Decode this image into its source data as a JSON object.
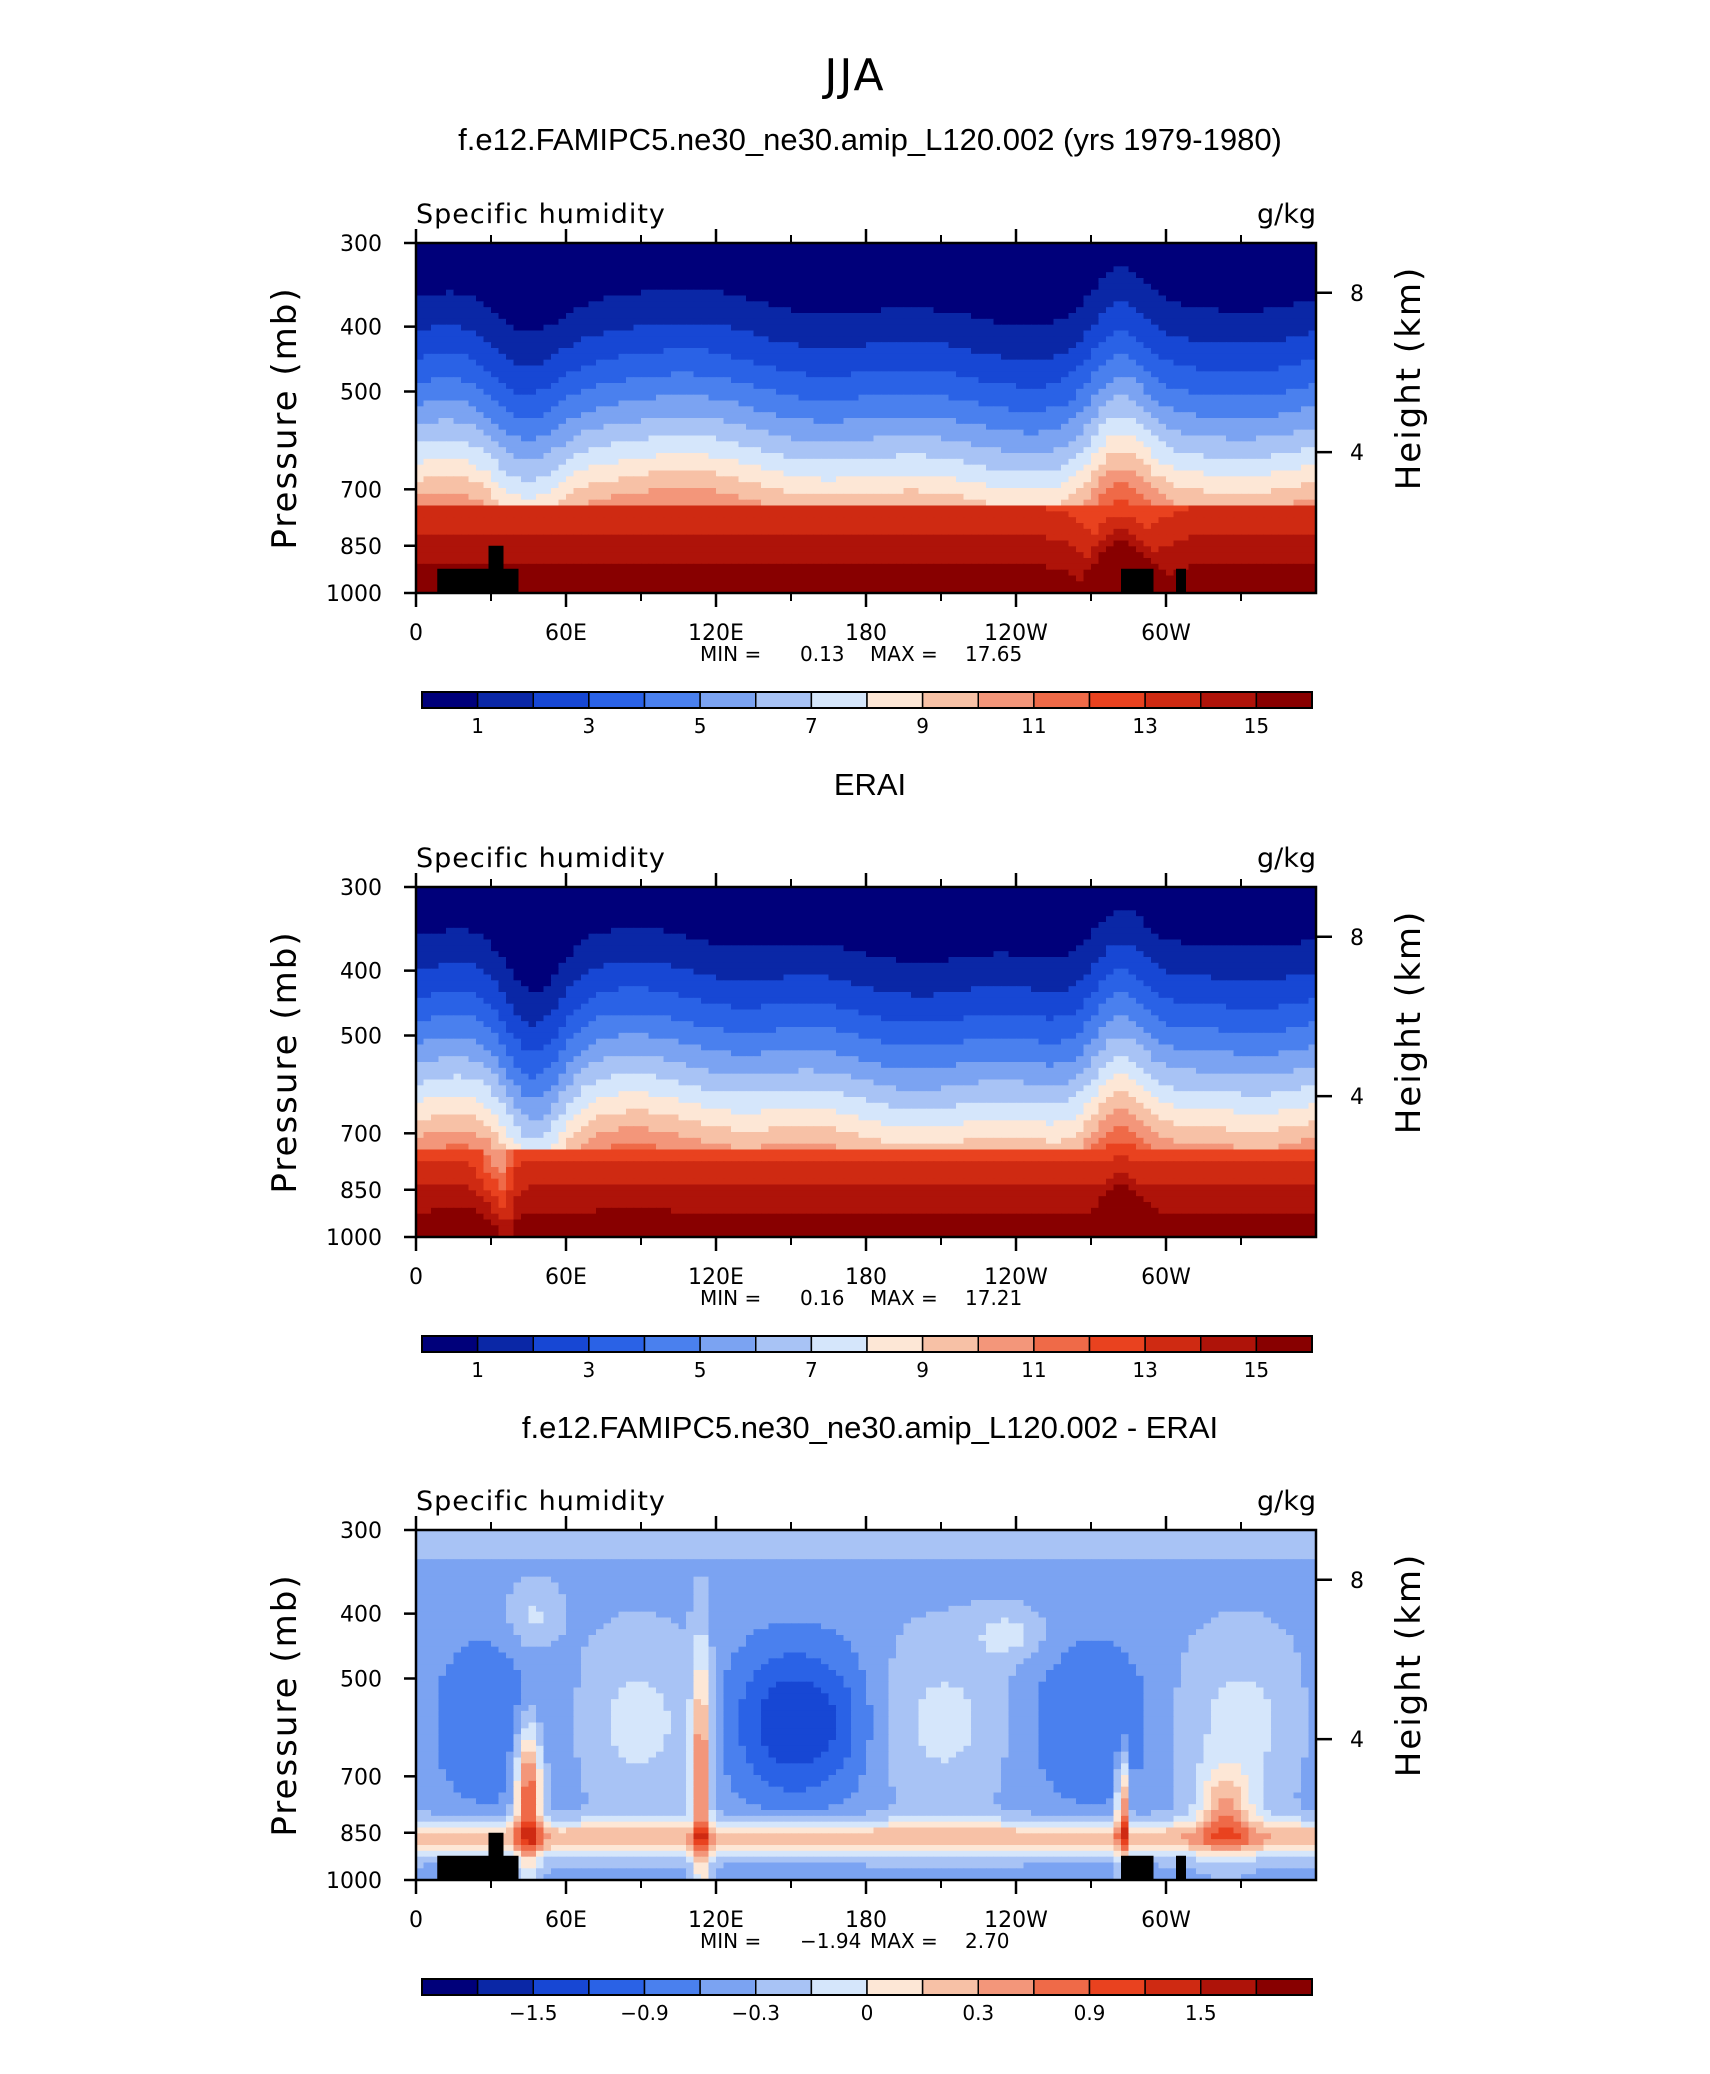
{
  "figure": {
    "title": "JJA"
  },
  "chart_data": [
    {
      "type": "heatmap",
      "title": "f.e12.FAMIPC5.ne30_ne30.amip_L120.002 (yrs 1979-1980)",
      "subtitle_left": "Specific humidity",
      "subtitle_right": "g/kg",
      "ylabel": "Pressure (mb)",
      "ylabel_right": "Height (km)",
      "x_ticks": [
        "0",
        "60E",
        "120E",
        "180",
        "120W",
        "60W"
      ],
      "x_tick_lon": [
        0,
        60,
        120,
        180,
        240,
        300
      ],
      "xlim": [
        0,
        360
      ],
      "y_ticks": [
        "300",
        "400",
        "500",
        "700",
        "850",
        "1000"
      ],
      "y_tick_values": [
        300,
        400,
        500,
        700,
        850,
        1000
      ],
      "ylim": [
        1000,
        300
      ],
      "y_right_ticks": [
        "8",
        "4"
      ],
      "y_right_values": [
        8,
        4
      ],
      "min_label": "MIN =",
      "min_value": "0.13",
      "max_label": "MAX =",
      "max_value": "17.65",
      "min": 0.13,
      "max": 17.65,
      "colorbar_labels": [
        "1",
        "3",
        "5",
        "7",
        "9",
        "11",
        "13",
        "15"
      ],
      "levels": [
        0,
        1,
        2,
        3,
        4,
        5,
        6,
        7,
        8,
        9,
        10,
        11,
        12,
        13,
        14,
        15,
        16
      ],
      "has_topography": true
    },
    {
      "type": "heatmap",
      "title": "ERAI",
      "subtitle_left": "Specific humidity",
      "subtitle_right": "g/kg",
      "ylabel": "Pressure (mb)",
      "ylabel_right": "Height (km)",
      "x_ticks": [
        "0",
        "60E",
        "120E",
        "180",
        "120W",
        "60W"
      ],
      "x_tick_lon": [
        0,
        60,
        120,
        180,
        240,
        300
      ],
      "xlim": [
        0,
        360
      ],
      "y_ticks": [
        "300",
        "400",
        "500",
        "700",
        "850",
        "1000"
      ],
      "y_tick_values": [
        300,
        400,
        500,
        700,
        850,
        1000
      ],
      "ylim": [
        1000,
        300
      ],
      "y_right_ticks": [
        "8",
        "4"
      ],
      "y_right_values": [
        8,
        4
      ],
      "min_label": "MIN =",
      "min_value": "0.16",
      "max_label": "MAX =",
      "max_value": "17.21",
      "min": 0.16,
      "max": 17.21,
      "colorbar_labels": [
        "1",
        "3",
        "5",
        "7",
        "9",
        "11",
        "13",
        "15"
      ],
      "levels": [
        0,
        1,
        2,
        3,
        4,
        5,
        6,
        7,
        8,
        9,
        10,
        11,
        12,
        13,
        14,
        15,
        16
      ],
      "has_topography": false
    },
    {
      "type": "heatmap",
      "title": "f.e12.FAMIPC5.ne30_ne30.amip_L120.002 - ERAI",
      "subtitle_left": "Specific humidity",
      "subtitle_right": "g/kg",
      "ylabel": "Pressure (mb)",
      "ylabel_right": "Height (km)",
      "x_ticks": [
        "0",
        "60E",
        "120E",
        "180",
        "120W",
        "60W"
      ],
      "x_tick_lon": [
        0,
        60,
        120,
        180,
        240,
        300
      ],
      "xlim": [
        0,
        360
      ],
      "y_ticks": [
        "300",
        "400",
        "500",
        "700",
        "850",
        "1000"
      ],
      "y_tick_values": [
        300,
        400,
        500,
        700,
        850,
        1000
      ],
      "ylim": [
        1000,
        300
      ],
      "y_right_ticks": [
        "8",
        "4"
      ],
      "y_right_values": [
        8,
        4
      ],
      "min_label": "MIN =",
      "min_value": "−1.94",
      "max_label": "MAX =",
      "max_value": "2.70",
      "min": -1.94,
      "max": 2.7,
      "colorbar_labels": [
        "−1.5",
        "−0.9",
        "−0.3",
        "0",
        "0.3",
        "0.9",
        "1.5"
      ],
      "levels": [
        -2.1,
        -1.8,
        -1.5,
        -1.2,
        -0.9,
        -0.6,
        -0.3,
        0,
        0.3,
        0.6,
        0.9,
        1.2,
        1.5,
        1.8,
        2.1,
        2.4,
        2.7
      ],
      "has_topography": true
    }
  ],
  "colors": {
    "palette": [
      "#00007a",
      "#0a27a6",
      "#1747d4",
      "#2a62e6",
      "#4a80ee",
      "#7ba3f2",
      "#a8c3f5",
      "#d5e6fb",
      "#fde7d6",
      "#f7c1a6",
      "#f3967a",
      "#ef6a48",
      "#e9421f",
      "#cf2a12",
      "#ae1309",
      "#880000"
    ]
  }
}
